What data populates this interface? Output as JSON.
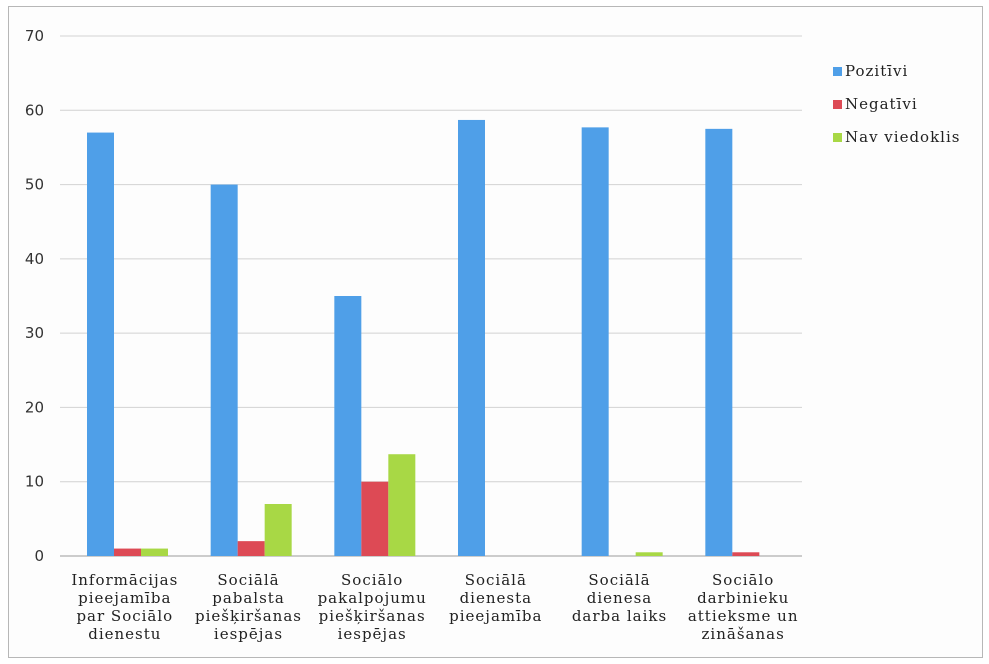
{
  "chart_data": {
    "type": "bar",
    "categories": [
      [
        "Informācijas",
        "pieejamība",
        "par Sociālo",
        "dienestu"
      ],
      [
        "Sociālā",
        "pabalsta",
        "piešķiršanas",
        "iespējas"
      ],
      [
        "Sociālo",
        "pakalpojumu",
        "piešķiršanas",
        "iespējas"
      ],
      [
        "Sociālā",
        "dienesta",
        "pieejamība"
      ],
      [
        "Sociālā",
        "dienesa",
        "darba laiks"
      ],
      [
        "Sociālo",
        "darbinieku",
        "attieksme un",
        "zināšanas"
      ]
    ],
    "series": [
      {
        "name": "Pozitīvi",
        "color": "#4f9fe8",
        "values": [
          57,
          50,
          35,
          58.7,
          57.7,
          57.5
        ]
      },
      {
        "name": "Negatīvi",
        "color": "#dd4a55",
        "values": [
          1,
          2,
          10,
          0,
          0,
          0.5
        ]
      },
      {
        "name": "Nav viedoklis",
        "color": "#a8d845",
        "values": [
          1,
          7,
          13.7,
          0,
          0.5,
          0
        ]
      }
    ],
    "ylim": [
      0,
      70
    ],
    "yticks": [
      0,
      10,
      20,
      30,
      40,
      50,
      60,
      70
    ],
    "grid": true,
    "legend_position": "right",
    "title": "",
    "xlabel": "",
    "ylabel": ""
  }
}
